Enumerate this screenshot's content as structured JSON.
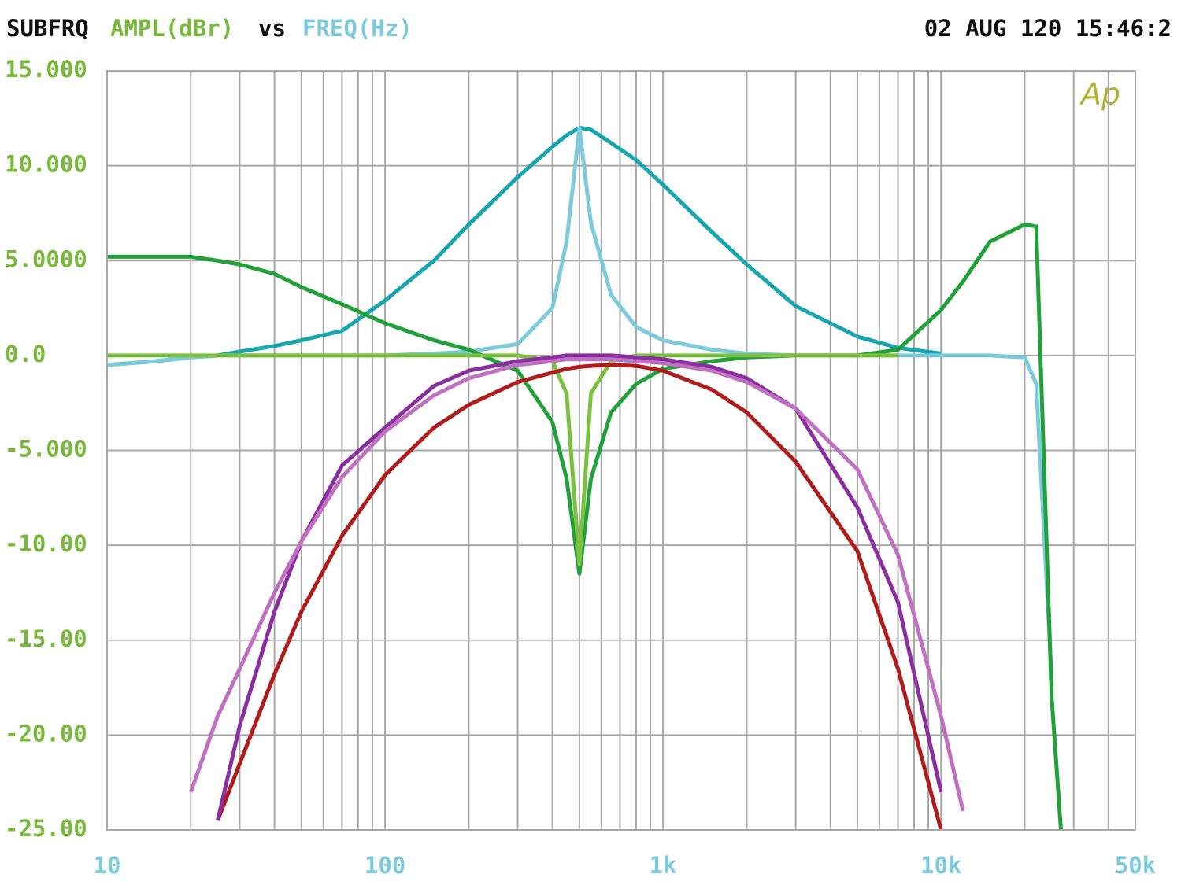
{
  "chart_data": {
    "type": "line",
    "title": "SUBFRQ",
    "ylabel": "AMPL(dBr)",
    "connector": "vs",
    "xlabel": "FREQ(Hz)",
    "timestamp": "02 AUG 120 15:46:2",
    "logo": "Ap",
    "xscale": "log",
    "grid": true,
    "x": [
      10,
      15,
      20,
      25,
      30,
      40,
      50,
      70,
      100,
      150,
      200,
      300,
      400,
      450,
      500,
      550,
      650,
      800,
      1000,
      1500,
      2000,
      3000,
      5000,
      7000,
      10000,
      12000,
      15000,
      20000,
      22000,
      25000,
      27000,
      30000
    ],
    "series": [
      {
        "color": "#17a6ad",
        "values": [
          -0.5,
          -0.3,
          -0.1,
          0,
          0.2,
          0.5,
          0.8,
          1.3,
          2.9,
          5,
          6.9,
          9.4,
          11,
          11.6,
          12,
          11.9,
          11.2,
          10.3,
          9,
          6.5,
          4.8,
          2.6,
          1,
          0.4,
          0.1,
          null,
          null,
          null,
          null,
          null,
          null,
          null
        ]
      },
      {
        "color": "#7ccbdc",
        "values": [
          -0.5,
          -0.3,
          -0.1,
          0,
          0,
          0,
          0,
          0,
          0,
          0.1,
          0.2,
          0.6,
          2.5,
          6,
          12,
          7,
          3.2,
          1.5,
          0.8,
          0.3,
          0.1,
          0,
          0,
          0,
          0,
          0,
          0,
          -0.1,
          -1.5,
          -17,
          null,
          null
        ]
      },
      {
        "color": "#22a03a",
        "values": [
          5.2,
          5.2,
          5.2,
          5,
          4.8,
          4.3,
          3.6,
          2.7,
          1.7,
          0.8,
          0.3,
          -0.8,
          -3.5,
          -6.5,
          -11.5,
          -6.5,
          -3,
          -1.5,
          -0.7,
          -0.3,
          -0.1,
          0,
          0,
          0.3,
          2.4,
          3.9,
          6,
          6.9,
          6.8,
          -18,
          -25,
          null
        ]
      },
      {
        "color": "#7cc040",
        "values": [
          0,
          0,
          0,
          0,
          0,
          0,
          0,
          0,
          0,
          0,
          0,
          0,
          -0.3,
          -2,
          -11,
          -2,
          -0.3,
          0,
          0,
          0,
          0,
          0,
          0,
          0,
          null,
          null,
          null,
          null,
          null,
          null,
          null,
          null
        ]
      },
      {
        "color": "#b01c1c",
        "values": [
          null,
          null,
          null,
          -24.5,
          -21.5,
          -16.8,
          -13.5,
          -9.5,
          -6.3,
          -3.8,
          -2.6,
          -1.4,
          -0.9,
          -0.7,
          -0.6,
          -0.55,
          -0.5,
          -0.55,
          -0.8,
          -1.8,
          -3,
          -5.6,
          -10.3,
          -16.5,
          -25,
          null,
          null,
          null,
          null,
          null,
          null,
          null
        ]
      },
      {
        "color": "#8a2ea0",
        "values": [
          null,
          null,
          null,
          -24.5,
          -19.5,
          -13.5,
          -9.8,
          -5.8,
          -3.8,
          -1.6,
          -0.8,
          -0.3,
          -0.1,
          0,
          0,
          0,
          0,
          -0.1,
          -0.2,
          -0.6,
          -1.2,
          -2.8,
          -8,
          -13,
          -23,
          null,
          null,
          null,
          null,
          null,
          null,
          null
        ]
      },
      {
        "color": "#c070c0",
        "values": [
          null,
          null,
          -23,
          -19,
          -16.5,
          -12.5,
          -9.8,
          -6.4,
          -4,
          -2.1,
          -1.2,
          -0.5,
          -0.3,
          -0.2,
          -0.2,
          -0.2,
          -0.2,
          -0.3,
          -0.4,
          -0.8,
          -1.4,
          -2.8,
          -6,
          -10.5,
          -19,
          -24,
          null,
          null,
          null,
          null,
          null,
          null
        ]
      }
    ],
    "xlim": [
      10,
      50000
    ],
    "ylim": [
      -25,
      15
    ],
    "xticks": [
      10,
      100,
      {
        "value": 1000,
        "label": "1k"
      },
      {
        "value": 10000,
        "label": "10k"
      },
      {
        "value": 50000,
        "label": "50k"
      }
    ],
    "xminorticks": [
      20,
      30,
      40,
      50,
      60,
      70,
      80,
      90,
      200,
      300,
      400,
      500,
      600,
      700,
      800,
      900,
      2000,
      3000,
      4000,
      5000,
      6000,
      7000,
      8000,
      9000,
      20000,
      30000,
      40000
    ],
    "yticks": [
      {
        "value": 15,
        "label": "15.000"
      },
      {
        "value": 10,
        "label": "10.000"
      },
      {
        "value": 5,
        "label": "5.0000"
      },
      {
        "value": 0,
        "label": "0.0"
      },
      {
        "value": -5,
        "label": "-5.000"
      },
      {
        "value": -10,
        "label": "-10.00"
      },
      {
        "value": -15,
        "label": "-15.00"
      },
      {
        "value": -20,
        "label": "-20.00"
      },
      {
        "value": -25,
        "label": "-25.00"
      }
    ]
  }
}
